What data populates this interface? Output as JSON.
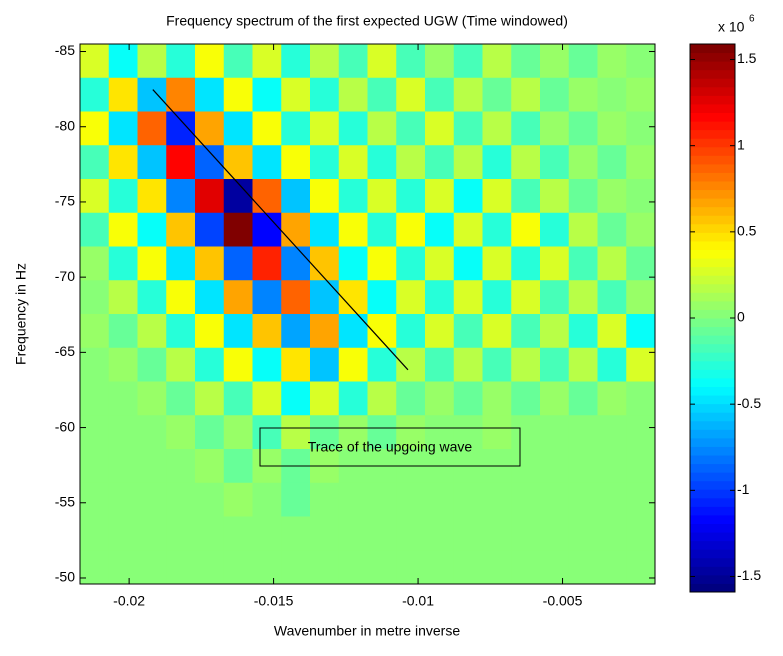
{
  "chart_data": {
    "type": "heatmap",
    "title": "Frequency spectrum of the first expected UGW (Time windowed)",
    "x_label": "Wavenumber in metre inverse",
    "y_label": "Frequency in Hz",
    "colormap": "jet",
    "xlim": [
      -0.0217,
      -0.0018
    ],
    "ylim": [
      -49.6,
      -85.5
    ],
    "xticks": [
      -0.02,
      -0.015,
      -0.01,
      -0.005
    ],
    "yticks": [
      -85,
      -80,
      -75,
      -70,
      -65,
      -60,
      -55,
      -50
    ],
    "clim": [
      -1.59,
      1.59
    ],
    "cticks": [
      -1.5,
      -1,
      -0.5,
      0,
      0.5,
      1,
      1.5
    ],
    "colorbar_scale_label": "x 10",
    "colorbar_scale_exponent": "6",
    "annotation": "Trace of the upgoing wave",
    "trace": {
      "x": [
        -0.01918,
        -0.01035
      ],
      "y": [
        -82.47,
        -63.84
      ]
    },
    "z": [
      [
        0.3,
        -0.4,
        0.2,
        -0.3,
        0.4,
        -0.2,
        0.3,
        -0.3,
        0.2,
        -0.2,
        0.3,
        -0.2,
        0.1,
        -0.2,
        0.2,
        -0.1,
        0.1,
        -0.1,
        0.1,
        0
      ],
      [
        -0.3,
        0.5,
        -0.6,
        0.8,
        -0.5,
        0.4,
        -0.4,
        0.3,
        -0.3,
        0.2,
        -0.2,
        0.3,
        -0.2,
        0.2,
        -0.1,
        0.2,
        -0.1,
        0.1,
        0,
        0.1
      ],
      [
        0.4,
        -0.5,
        0.9,
        -1.1,
        0.7,
        -0.5,
        0.4,
        -0.3,
        0.3,
        -0.3,
        0.2,
        -0.2,
        0.3,
        -0.2,
        0.2,
        -0.2,
        0.1,
        -0.1,
        0.1,
        0
      ],
      [
        -0.2,
        0.5,
        -0.6,
        1.2,
        -0.9,
        0.6,
        -0.5,
        0.4,
        -0.3,
        0.3,
        -0.3,
        0.2,
        -0.2,
        0.2,
        -0.3,
        0.2,
        -0.2,
        0.1,
        -0.1,
        0.1
      ],
      [
        0.3,
        -0.3,
        0.5,
        -0.8,
        1.3,
        -1.5,
        0.9,
        -0.6,
        0.4,
        -0.3,
        0.3,
        -0.3,
        0.3,
        -0.4,
        0.3,
        -0.2,
        0.2,
        -0.1,
        0.1,
        0
      ],
      [
        -0.2,
        0.4,
        -0.4,
        0.6,
        -1.0,
        1.6,
        -1.2,
        0.7,
        -0.5,
        0.4,
        -0.3,
        0.4,
        -0.4,
        0.3,
        -0.3,
        0.4,
        -0.3,
        0.2,
        -0.1,
        0.1
      ],
      [
        0.1,
        -0.3,
        0.4,
        -0.5,
        0.6,
        -0.9,
        1.1,
        -0.8,
        0.6,
        -0.4,
        0.4,
        -0.3,
        0.3,
        -0.4,
        0.3,
        -0.3,
        0.3,
        -0.2,
        0.2,
        -0.1
      ],
      [
        0,
        0.2,
        -0.3,
        0.4,
        -0.5,
        0.7,
        -0.8,
        0.9,
        -0.6,
        0.5,
        -0.4,
        0.3,
        -0.3,
        0.3,
        -0.3,
        0.3,
        -0.2,
        0.2,
        -0.2,
        0.1
      ],
      [
        0.1,
        -0.1,
        0.2,
        -0.3,
        0.4,
        -0.5,
        0.6,
        -0.7,
        0.7,
        -0.5,
        0.4,
        -0.3,
        0.3,
        -0.2,
        0.3,
        -0.2,
        0.2,
        -0.3,
        0.3,
        -0.4
      ],
      [
        0,
        0.1,
        -0.1,
        0.2,
        -0.3,
        0.4,
        -0.4,
        0.5,
        -0.6,
        0.4,
        -0.3,
        0.2,
        -0.2,
        0.2,
        -0.2,
        0.2,
        -0.2,
        0.2,
        -0.3,
        0.3
      ],
      [
        0,
        0,
        0.1,
        -0.1,
        0.2,
        -0.2,
        0.3,
        -0.4,
        0.3,
        -0.3,
        0.2,
        -0.1,
        0.1,
        -0.1,
        0.1,
        -0.1,
        0.1,
        -0.1,
        0.1,
        0
      ],
      [
        0,
        0,
        0,
        0.1,
        -0.1,
        0.1,
        -0.2,
        0.2,
        -0.1,
        0.1,
        -0.1,
        0.1,
        0,
        0,
        0.1,
        0,
        0,
        0,
        0,
        0
      ],
      [
        0,
        0,
        0,
        0,
        0.1,
        -0.1,
        0.1,
        -0.1,
        0.1,
        0,
        0,
        0,
        0,
        0,
        0,
        0,
        0,
        0,
        0,
        0
      ],
      [
        0,
        0,
        0,
        0,
        0,
        0.1,
        0,
        -0.1,
        0,
        0,
        0,
        0,
        0,
        0,
        0,
        0,
        0,
        0,
        0,
        0
      ],
      [
        0,
        0,
        0,
        0,
        0,
        0,
        0,
        0,
        0,
        0,
        0,
        0,
        0,
        0,
        0,
        0,
        0,
        0,
        0,
        0
      ],
      [
        0,
        0,
        0,
        0,
        0,
        0,
        0,
        0,
        0,
        0,
        0,
        0,
        0,
        0,
        0,
        0,
        0,
        0,
        0,
        0
      ]
    ]
  }
}
